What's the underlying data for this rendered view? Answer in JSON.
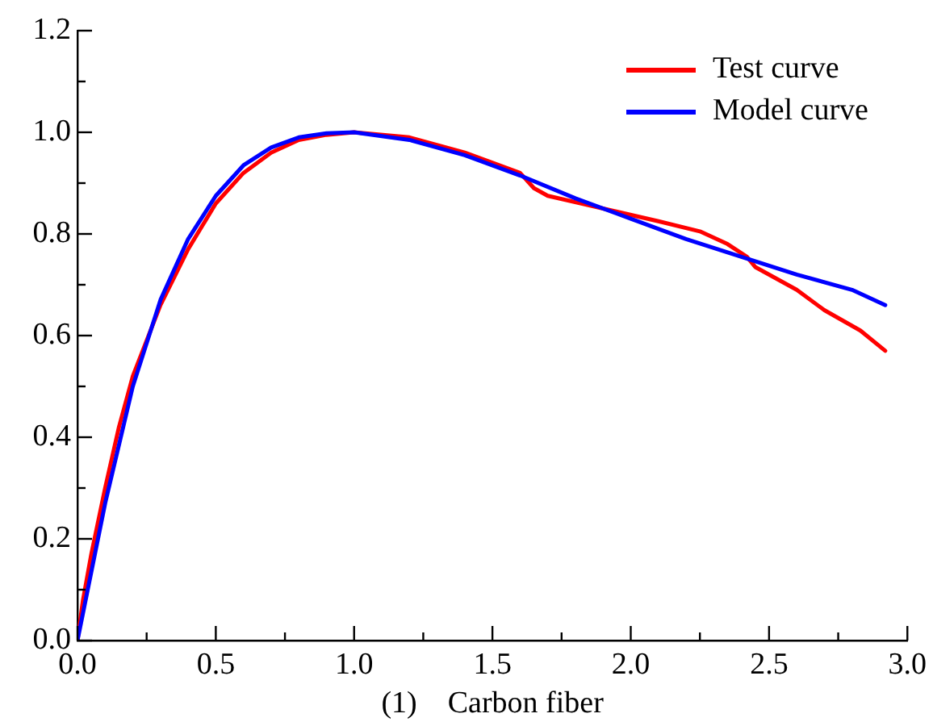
{
  "chart_data": {
    "type": "line",
    "xlabel": "(1)    Carbon fiber",
    "xlim": [
      0,
      3
    ],
    "ylim": [
      0,
      1.2
    ],
    "xticks": [
      {
        "value": 0,
        "label": "0.0"
      },
      {
        "value": 0.25,
        "label": null
      },
      {
        "value": 0.5,
        "label": "0.5"
      },
      {
        "value": 0.75,
        "label": null
      },
      {
        "value": 1,
        "label": "1.0"
      },
      {
        "value": 1.25,
        "label": null
      },
      {
        "value": 1.5,
        "label": "1.5"
      },
      {
        "value": 1.75,
        "label": null
      },
      {
        "value": 2,
        "label": "2.0"
      },
      {
        "value": 2.25,
        "label": null
      },
      {
        "value": 2.5,
        "label": "2.5"
      },
      {
        "value": 2.75,
        "label": null
      },
      {
        "value": 3,
        "label": "3.0"
      }
    ],
    "yticks": [
      {
        "value": 0,
        "label": "0.0"
      },
      {
        "value": 0.1,
        "label": null
      },
      {
        "value": 0.2,
        "label": "0.2"
      },
      {
        "value": 0.3,
        "label": null
      },
      {
        "value": 0.4,
        "label": "0.4"
      },
      {
        "value": 0.5,
        "label": null
      },
      {
        "value": 0.6,
        "label": "0.6"
      },
      {
        "value": 0.7,
        "label": null
      },
      {
        "value": 0.8,
        "label": "0.8"
      },
      {
        "value": 0.9,
        "label": null
      },
      {
        "value": 1,
        "label": "1.0"
      },
      {
        "value": 1.1,
        "label": null
      },
      {
        "value": 1.2,
        "label": "1.2"
      }
    ],
    "grid": false,
    "legend": "top right",
    "marker": "none",
    "line_style": "solid",
    "series": [
      {
        "name": "Test curve",
        "color": "#ff0000",
        "x": [
          0,
          0.02,
          0.05,
          0.1,
          0.15,
          0.2,
          0.3,
          0.4,
          0.5,
          0.6,
          0.7,
          0.8,
          0.9,
          1.0,
          1.2,
          1.4,
          1.6,
          1.65,
          1.7,
          1.9,
          2.1,
          2.25,
          2.35,
          2.42,
          2.45,
          2.6,
          2.7,
          2.83,
          2.92
        ],
        "values": [
          0,
          0.08,
          0.17,
          0.3,
          0.42,
          0.52,
          0.66,
          0.77,
          0.86,
          0.92,
          0.96,
          0.985,
          0.995,
          1.0,
          0.99,
          0.96,
          0.92,
          0.89,
          0.875,
          0.85,
          0.825,
          0.805,
          0.78,
          0.755,
          0.735,
          0.69,
          0.65,
          0.61,
          0.57
        ]
      },
      {
        "name": "Model curve",
        "color": "#0000ff",
        "x": [
          0,
          0.1,
          0.2,
          0.3,
          0.4,
          0.5,
          0.6,
          0.7,
          0.8,
          0.9,
          1.0,
          1.2,
          1.4,
          1.6,
          1.8,
          2.0,
          2.2,
          2.4,
          2.6,
          2.8,
          2.92
        ],
        "values": [
          0,
          0.27,
          0.5,
          0.67,
          0.79,
          0.875,
          0.935,
          0.97,
          0.99,
          0.998,
          1.0,
          0.985,
          0.955,
          0.915,
          0.87,
          0.83,
          0.79,
          0.755,
          0.72,
          0.69,
          0.66
        ]
      }
    ]
  }
}
